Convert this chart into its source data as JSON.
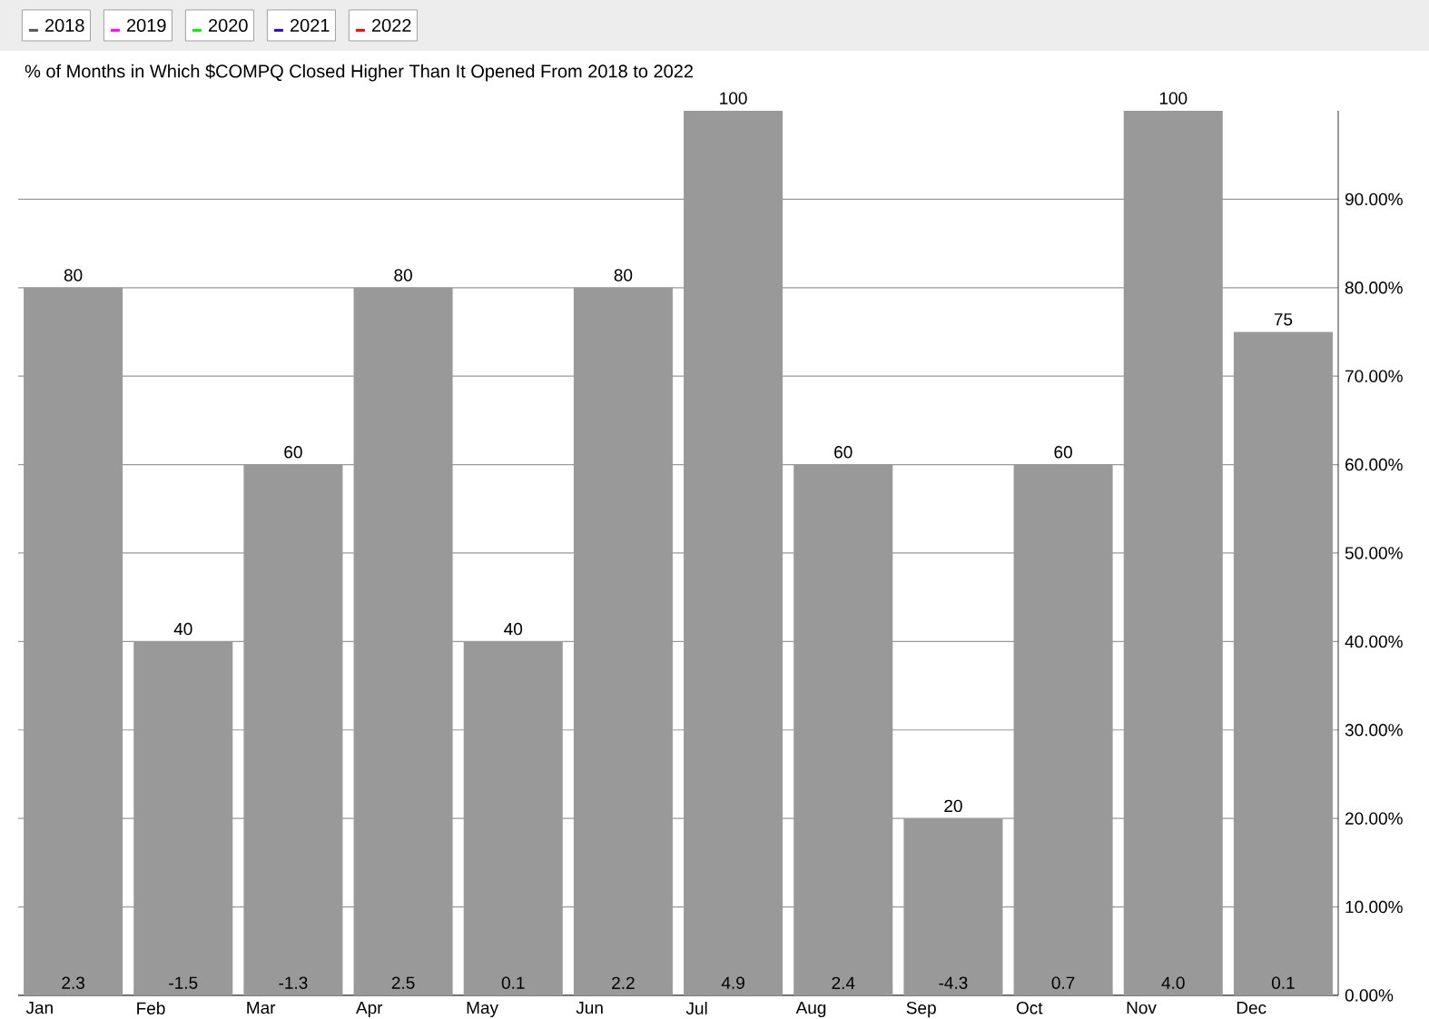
{
  "chart_data": {
    "type": "bar",
    "title": "% of Months in Which $COMPQ Closed Higher Than It Opened From 2018 to 2022",
    "categories": [
      "Jan",
      "Feb",
      "Mar",
      "Apr",
      "May",
      "Jun",
      "Jul",
      "Aug",
      "Sep",
      "Oct",
      "Nov",
      "Dec"
    ],
    "series": [
      {
        "color": "#999999",
        "values": [
          80,
          40,
          60,
          80,
          40,
          80,
          100,
          60,
          20,
          60,
          100,
          75
        ]
      },
      {
        "type": "line",
        "name": "2018",
        "color": "#555555",
        "values": [
          null,
          null,
          null,
          null,
          null,
          null,
          null,
          null,
          null,
          null,
          null,
          null
        ]
      },
      {
        "type": "line",
        "name": "2019",
        "color": "#ff00ff",
        "values": [
          null,
          null,
          null,
          null,
          null,
          null,
          null,
          null,
          null,
          null,
          null,
          null
        ]
      },
      {
        "type": "line",
        "name": "2020",
        "color": "#00ee00",
        "values": [
          null,
          null,
          null,
          null,
          null,
          null,
          null,
          null,
          null,
          null,
          null,
          null
        ]
      },
      {
        "type": "line",
        "name": "2021",
        "color": "#3300cc",
        "values": [
          null,
          null,
          null,
          null,
          null,
          null,
          null,
          null,
          null,
          null,
          null,
          null
        ]
      },
      {
        "type": "line",
        "name": "2022",
        "color": "#ff0000",
        "values": [
          null,
          null,
          null,
          null,
          null,
          null,
          null,
          null,
          null,
          null,
          null,
          null
        ]
      }
    ],
    "ylim": [
      0,
      100
    ],
    "yticks": [
      {
        "value": 0,
        "label": "0.00%"
      },
      {
        "value": 10,
        "label": "10.00%"
      },
      {
        "value": 20,
        "label": "20.00%"
      },
      {
        "value": 30,
        "label": "30.00%"
      },
      {
        "value": 40,
        "label": "40.00%"
      },
      {
        "value": 50,
        "label": "50.00%"
      },
      {
        "value": 60,
        "label": "60.00%"
      },
      {
        "value": 70,
        "label": "70.00%"
      },
      {
        "value": 80,
        "label": "80.00%"
      },
      {
        "value": 90,
        "label": "90.00%"
      }
    ],
    "grid": "y",
    "legend": "top left",
    "data_labels": true,
    "annotations": [
      {
        "text": "2.3",
        "x": "Jan",
        "y": 0
      },
      {
        "text": "-1.5",
        "x": "Feb",
        "y": 0
      },
      {
        "text": "-1.3",
        "x": "Mar",
        "y": 0
      },
      {
        "text": "2.5",
        "x": "Apr",
        "y": 0
      },
      {
        "text": "0.1",
        "x": "May",
        "y": 0
      },
      {
        "text": "2.2",
        "x": "Jun",
        "y": 0
      },
      {
        "text": "4.9",
        "x": "Jul",
        "y": 0
      },
      {
        "text": "2.4",
        "x": "Aug",
        "y": 0
      },
      {
        "text": "-4.3",
        "x": "Sep",
        "y": 0
      },
      {
        "text": "0.7",
        "x": "Oct",
        "y": 0
      },
      {
        "text": "4.0",
        "x": "Nov",
        "y": 0
      },
      {
        "text": "0.1",
        "x": "Dec",
        "y": 0
      }
    ]
  }
}
